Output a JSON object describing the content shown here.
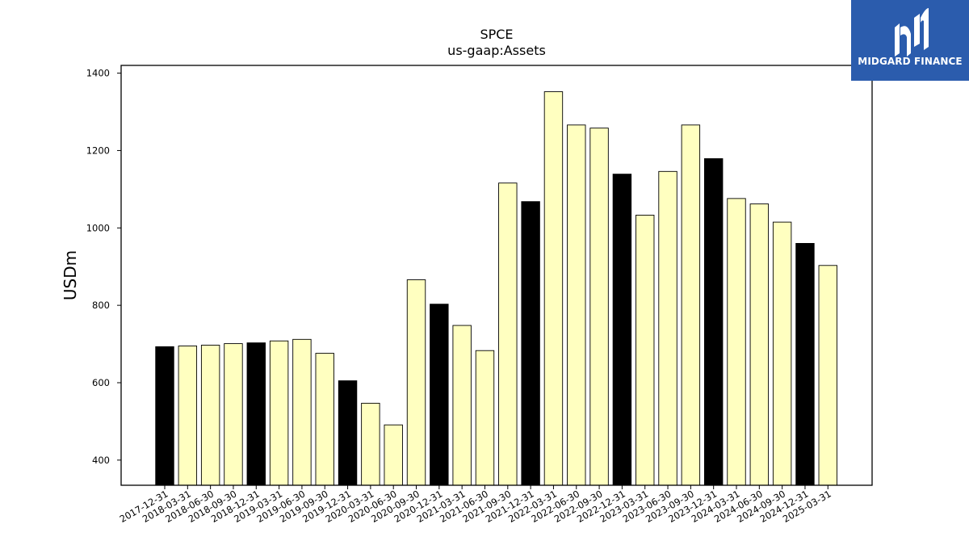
{
  "chart_data": {
    "type": "bar",
    "title": "SPCE",
    "subtitle": "us-gaap:Assets",
    "ylabel": "USDm",
    "ylim": [
      335,
      1420
    ],
    "yticks": [
      400,
      600,
      800,
      1000,
      1200,
      1400
    ],
    "categories": [
      "2017-12-31",
      "2018-03-31",
      "2018-06-30",
      "2018-09-30",
      "2018-12-31",
      "2019-03-31",
      "2019-06-30",
      "2019-09-30",
      "2019-12-31",
      "2020-03-31",
      "2020-06-30",
      "2020-09-30",
      "2020-12-31",
      "2021-03-31",
      "2021-06-30",
      "2021-09-30",
      "2021-12-31",
      "2022-03-31",
      "2022-06-30",
      "2022-09-30",
      "2022-12-31",
      "2023-03-31",
      "2023-06-30",
      "2023-09-30",
      "2023-12-31",
      "2024-03-31",
      "2024-06-30",
      "2024-09-30",
      "2024-12-31",
      "2025-03-31"
    ],
    "values": [
      693,
      695,
      697,
      701,
      703,
      708,
      712,
      676,
      605,
      547,
      491,
      866,
      803,
      748,
      683,
      1116,
      1068,
      1352,
      1266,
      1258,
      1139,
      1033,
      1146,
      1266,
      1179,
      1076,
      1062,
      1015,
      960,
      903
    ],
    "highlight_categories": [
      "2017-12-31",
      "2018-12-31",
      "2019-12-31",
      "2020-12-31",
      "2021-12-31",
      "2022-12-31",
      "2023-12-31",
      "2024-12-31"
    ],
    "colors": {
      "bar": "#ffffc0",
      "highlight": "#000000",
      "edge": "#000000"
    }
  },
  "logo": {
    "text": "MIDGARD FINANCE",
    "background": "#2b5cad"
  }
}
